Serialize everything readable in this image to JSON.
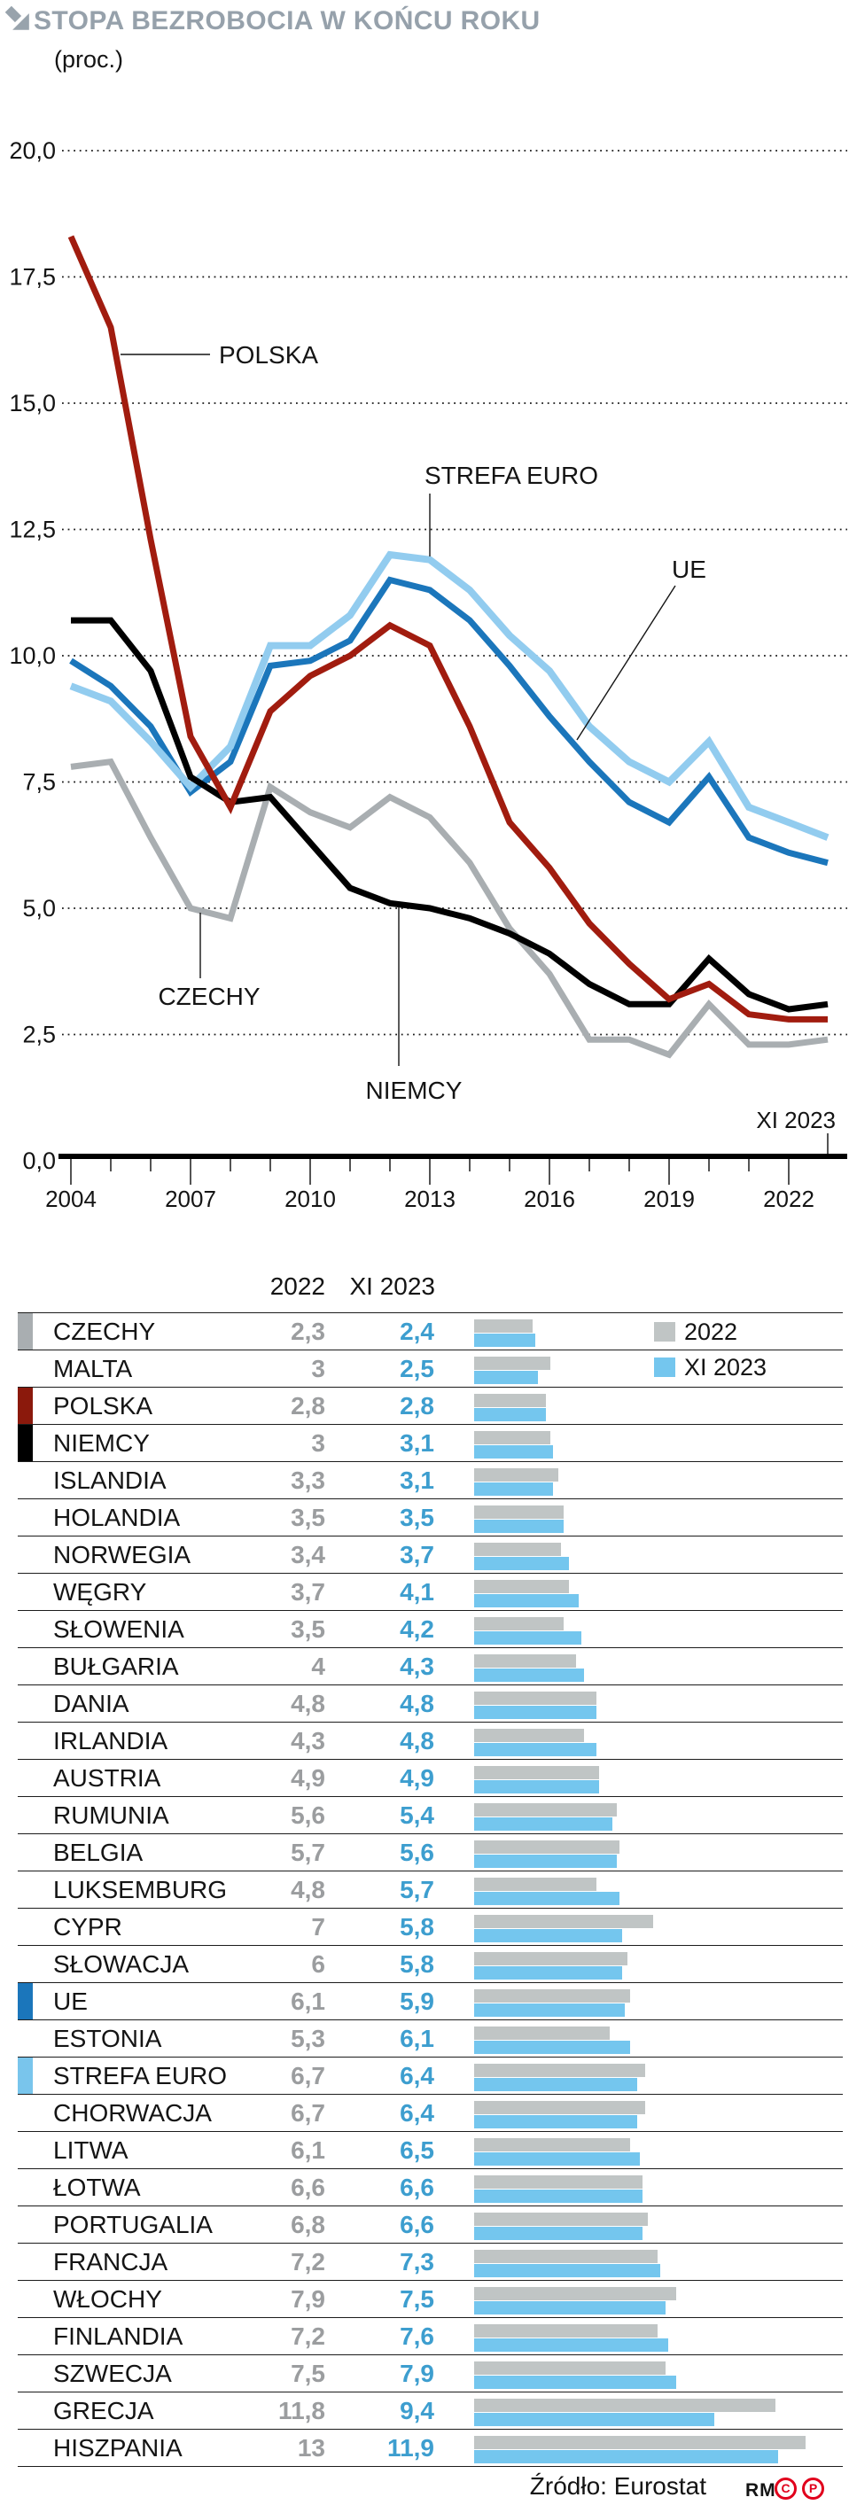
{
  "header": {
    "title": "STOPA BEZROBOCIA W KOŃCU ROKU",
    "subtitle": "(proc.)"
  },
  "colors": {
    "title_gray": "#96a1ab",
    "text_black": "#141414",
    "value_gray": "#9b9d9f",
    "value_blue": "#3d9ecf",
    "bar_gray": "#c0c5c5",
    "bar_blue": "#74c6ee",
    "separator": "#1c1c1c",
    "badge_red": "#e1001c"
  },
  "chart_data": [
    {
      "type": "line",
      "title": "STOPA BEZROBOCIA W KOŃCU ROKU",
      "unit": "proc.",
      "x_years": [
        2004,
        2005,
        2006,
        2007,
        2008,
        2009,
        2010,
        2011,
        2012,
        2013,
        2014,
        2015,
        2016,
        2017,
        2018,
        2019,
        2020,
        2021,
        2022
      ],
      "end_point_label": "XI 2023",
      "x_tick_labels": [
        "2004",
        "2007",
        "2010",
        "2013",
        "2016",
        "2019",
        "2022"
      ],
      "y_tick_labels": [
        "0,0",
        "2,5",
        "5,0",
        "7,5",
        "10,0",
        "12,5",
        "15,0",
        "17,5",
        "20,0"
      ],
      "ylim": [
        0,
        20
      ],
      "ytick_step": 2.5,
      "grid": "horizontal-dotted",
      "legend_position": "inline-callouts",
      "series": [
        {
          "name": "CZECHY",
          "color": "#a9aeb1",
          "values": [
            7.8,
            7.9,
            6.4,
            5.0,
            4.8,
            7.4,
            6.9,
            6.6,
            7.2,
            6.8,
            5.9,
            4.6,
            3.7,
            2.4,
            2.4,
            2.1,
            3.1,
            2.3,
            2.3,
            2.4
          ]
        },
        {
          "name": "UE",
          "color": "#1b76bb",
          "values": [
            9.9,
            9.4,
            8.6,
            7.3,
            7.9,
            9.8,
            9.9,
            10.3,
            11.5,
            11.3,
            10.7,
            9.8,
            8.8,
            7.9,
            7.1,
            6.7,
            7.6,
            6.4,
            6.1,
            5.9
          ]
        },
        {
          "name": "STREFA EURO",
          "color": "#92ccef",
          "values": [
            9.4,
            9.1,
            8.3,
            7.4,
            8.2,
            10.2,
            10.2,
            10.8,
            12.0,
            11.9,
            11.3,
            10.4,
            9.7,
            8.6,
            7.9,
            7.5,
            8.3,
            7.0,
            6.7,
            6.4
          ]
        },
        {
          "name": "NIEMCY",
          "color": "#000000",
          "values": [
            10.7,
            10.7,
            9.7,
            7.6,
            7.1,
            7.2,
            6.3,
            5.4,
            5.1,
            5.0,
            4.8,
            4.5,
            4.1,
            3.5,
            3.1,
            3.1,
            4.0,
            3.3,
            3.0,
            3.1
          ]
        },
        {
          "name": "POLSKA",
          "color": "#a11c0f",
          "values": [
            18.3,
            16.5,
            12.3,
            8.4,
            7.0,
            8.9,
            9.6,
            10.0,
            10.6,
            10.2,
            8.6,
            6.7,
            5.8,
            4.7,
            3.9,
            3.2,
            3.5,
            2.9,
            2.8,
            2.8
          ]
        }
      ]
    },
    {
      "type": "table",
      "columns": [
        "2022",
        "XI 2023"
      ],
      "legend": [
        {
          "label": "2022",
          "color": "#c0c5c5"
        },
        {
          "label": "XI 2023",
          "color": "#74c6ee"
        }
      ],
      "rows": [
        {
          "name": "CZECHY",
          "y2022": "2,3",
          "xi2023": "2,4",
          "swatch": "#a9aeb1"
        },
        {
          "name": "MALTA",
          "y2022": "3",
          "xi2023": "2,5"
        },
        {
          "name": "POLSKA",
          "y2022": "2,8",
          "xi2023": "2,8",
          "swatch": "#8b190c"
        },
        {
          "name": "NIEMCY",
          "y2022": "3",
          "xi2023": "3,1",
          "swatch": "#000000"
        },
        {
          "name": "ISLANDIA",
          "y2022": "3,3",
          "xi2023": "3,1"
        },
        {
          "name": "HOLANDIA",
          "y2022": "3,5",
          "xi2023": "3,5"
        },
        {
          "name": "NORWEGIA",
          "y2022": "3,4",
          "xi2023": "3,7"
        },
        {
          "name": "WĘGRY",
          "y2022": "3,7",
          "xi2023": "4,1"
        },
        {
          "name": "SŁOWENIA",
          "y2022": "3,5",
          "xi2023": "4,2"
        },
        {
          "name": "BUŁGARIA",
          "y2022": "4",
          "xi2023": "4,3"
        },
        {
          "name": "DANIA",
          "y2022": "4,8",
          "xi2023": "4,8"
        },
        {
          "name": "IRLANDIA",
          "y2022": "4,3",
          "xi2023": "4,8"
        },
        {
          "name": "AUSTRIA",
          "y2022": "4,9",
          "xi2023": "4,9"
        },
        {
          "name": "RUMUNIA",
          "y2022": "5,6",
          "xi2023": "5,4"
        },
        {
          "name": "BELGIA",
          "y2022": "5,7",
          "xi2023": "5,6"
        },
        {
          "name": "LUKSEMBURG",
          "y2022": "4,8",
          "xi2023": "5,7"
        },
        {
          "name": "CYPR",
          "y2022": "7",
          "xi2023": "5,8"
        },
        {
          "name": "SŁOWACJA",
          "y2022": "6",
          "xi2023": "5,8"
        },
        {
          "name": "UE",
          "y2022": "6,1",
          "xi2023": "5,9",
          "swatch": "#1b76bb"
        },
        {
          "name": "ESTONIA",
          "y2022": "5,3",
          "xi2023": "6,1"
        },
        {
          "name": "STREFA EURO",
          "y2022": "6,7",
          "xi2023": "6,4",
          "swatch": "#79c5ec"
        },
        {
          "name": "CHORWACJA",
          "y2022": "6,7",
          "xi2023": "6,4"
        },
        {
          "name": "LITWA",
          "y2022": "6,1",
          "xi2023": "6,5"
        },
        {
          "name": "ŁOTWA",
          "y2022": "6,6",
          "xi2023": "6,6"
        },
        {
          "name": "PORTUGALIA",
          "y2022": "6,8",
          "xi2023": "6,6"
        },
        {
          "name": "FRANCJA",
          "y2022": "7,2",
          "xi2023": "7,3"
        },
        {
          "name": "WŁOCHY",
          "y2022": "7,9",
          "xi2023": "7,5"
        },
        {
          "name": "FINLANDIA",
          "y2022": "7,2",
          "xi2023": "7,6"
        },
        {
          "name": "SZWECJA",
          "y2022": "7,5",
          "xi2023": "7,9"
        },
        {
          "name": "GRECJA",
          "y2022": "11,8",
          "xi2023": "9,4"
        },
        {
          "name": "HISZPANIA",
          "y2022": "13",
          "xi2023": "11,9"
        }
      ]
    }
  ],
  "footer": {
    "source": "Źródło: Eurostat",
    "credit": "RM",
    "badges": [
      "C",
      "P"
    ]
  }
}
